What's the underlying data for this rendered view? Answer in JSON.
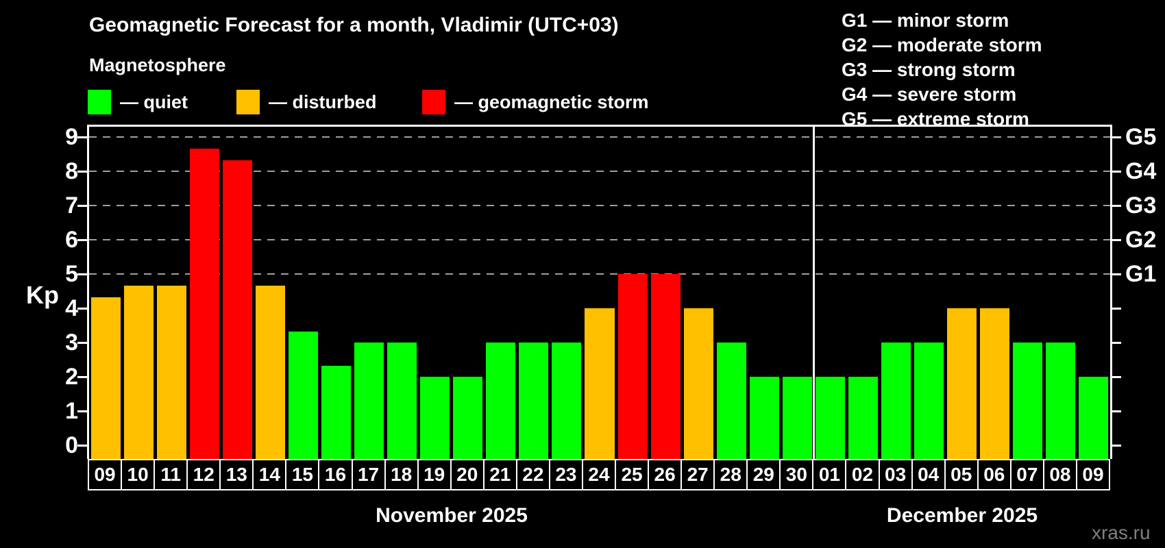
{
  "title": "Geomagnetic Forecast for a month, Vladimir (UTC+03)",
  "subtitle": "Magnetosphere",
  "magnetosphere_legend": [
    {
      "key": "quiet",
      "label": "— quiet",
      "color": "#00ff00"
    },
    {
      "key": "disturbed",
      "label": "— disturbed",
      "color": "#ffc000"
    },
    {
      "key": "storm",
      "label": "— geomagnetic storm",
      "color": "#ff0000"
    }
  ],
  "storm_scale_legend": [
    {
      "text": "G1 — minor storm"
    },
    {
      "text": "G2 — moderate storm"
    },
    {
      "text": "G3 — strong storm"
    },
    {
      "text": "G4 — severe storm"
    },
    {
      "text": "G5 — extreme storm"
    }
  ],
  "watermark": "xras.ru",
  "chart_data": {
    "type": "bar",
    "title": "Geomagnetic Forecast for a month, Vladimir (UTC+03)",
    "ylabel": "Kp",
    "ylim": [
      0,
      9.3
    ],
    "grid": "dashed horizontal at Kp 5-9 only",
    "y_ticks": [
      0,
      1,
      2,
      3,
      4,
      5,
      6,
      7,
      8,
      9
    ],
    "right_axis_labels": [
      {
        "value": 5,
        "label": "G1"
      },
      {
        "value": 6,
        "label": "G2"
      },
      {
        "value": 7,
        "label": "G3"
      },
      {
        "value": 8,
        "label": "G4"
      },
      {
        "value": 9,
        "label": "G5"
      }
    ],
    "gridline_values": [
      5,
      6,
      7,
      8,
      9
    ],
    "months": [
      {
        "label": "November 2025",
        "days": 22
      },
      {
        "label": "December 2025",
        "days": 9
      }
    ],
    "categories": [
      "09",
      "10",
      "11",
      "12",
      "13",
      "14",
      "15",
      "16",
      "17",
      "18",
      "19",
      "20",
      "21",
      "22",
      "23",
      "24",
      "25",
      "26",
      "27",
      "28",
      "29",
      "30",
      "01",
      "02",
      "03",
      "04",
      "05",
      "06",
      "07",
      "08",
      "09"
    ],
    "values": [
      4.33,
      4.67,
      4.67,
      8.67,
      8.33,
      4.67,
      3.33,
      2.33,
      3,
      3,
      2,
      2,
      3,
      3,
      3,
      4,
      5,
      5,
      4,
      3,
      2,
      2,
      2,
      2,
      3,
      3,
      4,
      4,
      3,
      3,
      2
    ],
    "status": [
      "disturbed",
      "disturbed",
      "disturbed",
      "storm",
      "storm",
      "disturbed",
      "quiet",
      "quiet",
      "quiet",
      "quiet",
      "quiet",
      "quiet",
      "quiet",
      "quiet",
      "quiet",
      "disturbed",
      "storm",
      "storm",
      "disturbed",
      "quiet",
      "quiet",
      "quiet",
      "quiet",
      "quiet",
      "quiet",
      "quiet",
      "disturbed",
      "disturbed",
      "quiet",
      "quiet",
      "quiet"
    ],
    "colors": {
      "quiet": "#00ff00",
      "disturbed": "#ffc000",
      "storm": "#ff0000"
    }
  }
}
